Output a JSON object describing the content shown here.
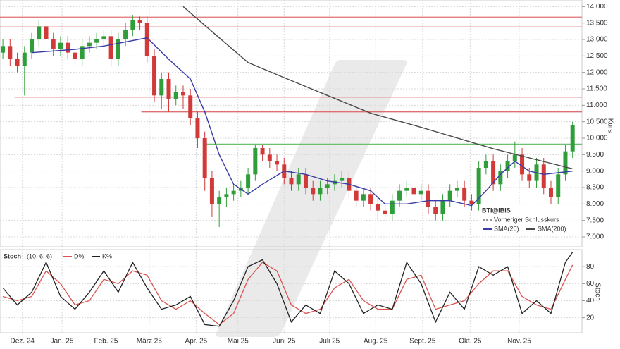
{
  "chart_data": [
    {
      "type": "candlestick",
      "title": "BTI@IBIS",
      "y_label": "Kurs",
      "previous_close_label": "Vorheriger Schlusskurs",
      "xlim": [
        -0.4,
        80.3
      ],
      "xticks": [
        {
          "value": 2.7,
          "label": "Dez. 24"
        },
        {
          "value": 8.2,
          "label": "Jan. 25"
        },
        {
          "value": 14.3,
          "label": "Feb. 25"
        },
        {
          "value": 20.3,
          "label": "März 25"
        },
        {
          "value": 26.8,
          "label": "Apr. 25"
        },
        {
          "value": 32.6,
          "label": "Mai 25"
        },
        {
          "value": 39,
          "label": "Juni 25"
        },
        {
          "value": 45.3,
          "label": "Juli 25"
        },
        {
          "value": 51.7,
          "label": "Aug. 25"
        },
        {
          "value": 58.2,
          "label": "Sept. 25"
        },
        {
          "value": 64.8,
          "label": "Okt. 25"
        },
        {
          "value": 71.6,
          "label": "Nov. 25"
        }
      ],
      "ylim": [
        6.7,
        14.2
      ],
      "yticks": [
        {
          "value": 7,
          "label": "7.000"
        },
        {
          "value": 7.5,
          "label": "7.500"
        },
        {
          "value": 8,
          "label": "8.000"
        },
        {
          "value": 8.5,
          "label": "8.500"
        },
        {
          "value": 9,
          "label": "9.000"
        },
        {
          "value": 9.5,
          "label": "9.500"
        },
        {
          "value": 10,
          "label": "10.000"
        },
        {
          "value": 10.5,
          "label": "10.500"
        },
        {
          "value": 11,
          "label": "11.000"
        },
        {
          "value": 11.5,
          "label": "11.500"
        },
        {
          "value": 12,
          "label": "12.000"
        },
        {
          "value": 12.5,
          "label": "12.500"
        },
        {
          "value": 13,
          "label": "13.000"
        },
        {
          "value": 13.5,
          "label": "13.500"
        },
        {
          "value": 14,
          "label": "14.000"
        }
      ],
      "grid": true,
      "up_color": "#2f9e3a",
      "down_color": "#d23a3a",
      "open": [
        12.6,
        12.8,
        12.4,
        12.2,
        12.6,
        13.0,
        13.4,
        13.0,
        12.7,
        12.9,
        12.6,
        12.4,
        12.8,
        12.9,
        13.0,
        13.1,
        12.4,
        13.0,
        13.3,
        13.6,
        13.5,
        12.5,
        11.3,
        11.8,
        11.2,
        11.4,
        11.3,
        10.6,
        10.0,
        8.8,
        8.0,
        8.2,
        8.3,
        8.4,
        8.5,
        8.9,
        9.7,
        9.5,
        9.3,
        9.2,
        8.8,
        8.6,
        8.9,
        8.5,
        8.3,
        8.5,
        8.6,
        8.7,
        8.8,
        8.4,
        8.1,
        8.3,
        8.0,
        7.8,
        7.7,
        8.1,
        8.4,
        8.5,
        8.3,
        8.4,
        7.9,
        7.7,
        8.1,
        8.4,
        8.5,
        8.1,
        8.0,
        9.1,
        9.3,
        8.6,
        9.0,
        9.3,
        9.5,
        8.9,
        8.7,
        9.2,
        8.5,
        8.2,
        8.9,
        9.6
      ],
      "high": [
        13.0,
        13.0,
        12.6,
        12.8,
        13.2,
        13.6,
        13.6,
        13.2,
        13.1,
        13.1,
        12.8,
        13.0,
        13.1,
        13.2,
        13.3,
        13.3,
        13.2,
        13.5,
        13.75,
        13.7,
        13.7,
        12.7,
        12.0,
        12.0,
        11.6,
        11.6,
        11.5,
        10.8,
        10.2,
        9.0,
        8.4,
        8.5,
        8.6,
        8.7,
        9.1,
        9.8,
        9.8,
        9.7,
        9.5,
        9.4,
        9.0,
        9.1,
        9.1,
        8.7,
        8.7,
        8.8,
        8.9,
        9.0,
        9.0,
        8.6,
        8.5,
        8.5,
        8.2,
        8.0,
        8.3,
        8.6,
        8.7,
        8.7,
        8.6,
        8.6,
        8.1,
        8.3,
        8.6,
        8.7,
        8.7,
        8.3,
        9.3,
        9.5,
        9.5,
        9.2,
        9.5,
        9.9,
        9.7,
        9.1,
        9.4,
        9.4,
        8.7,
        9.1,
        9.8,
        10.5
      ],
      "low": [
        12.4,
        12.2,
        12.0,
        11.3,
        12.4,
        12.8,
        12.8,
        12.5,
        12.5,
        12.4,
        12.2,
        12.2,
        12.6,
        12.7,
        12.8,
        12.2,
        12.2,
        12.8,
        13.1,
        13.3,
        12.3,
        11.1,
        10.9,
        10.8,
        11.0,
        10.9,
        10.4,
        9.7,
        8.4,
        7.6,
        7.3,
        7.9,
        8.1,
        8.2,
        8.3,
        8.7,
        9.3,
        9.1,
        9.0,
        8.6,
        8.4,
        8.4,
        8.3,
        8.1,
        8.1,
        8.3,
        8.4,
        8.5,
        8.2,
        7.9,
        7.9,
        7.8,
        7.5,
        7.5,
        7.5,
        7.9,
        8.2,
        8.1,
        8.1,
        7.7,
        7.5,
        7.5,
        7.9,
        8.2,
        7.9,
        7.8,
        7.8,
        8.9,
        8.4,
        8.4,
        8.8,
        9.1,
        8.7,
        8.5,
        8.5,
        8.3,
        8.0,
        8.0,
        8.7,
        9.4
      ],
      "close": [
        12.8,
        12.4,
        12.2,
        12.6,
        13.0,
        13.4,
        13.0,
        12.7,
        12.9,
        12.6,
        12.4,
        12.8,
        12.9,
        13.0,
        13.1,
        12.4,
        13.0,
        13.3,
        13.6,
        13.5,
        12.5,
        11.3,
        11.8,
        11.2,
        11.4,
        11.3,
        10.6,
        10.0,
        8.8,
        8.0,
        8.2,
        8.3,
        8.4,
        8.5,
        8.9,
        9.7,
        9.5,
        9.3,
        9.2,
        8.8,
        8.6,
        8.9,
        8.5,
        8.3,
        8.5,
        8.6,
        8.7,
        8.8,
        8.4,
        8.1,
        8.3,
        8.0,
        7.8,
        7.7,
        8.1,
        8.4,
        8.5,
        8.3,
        8.4,
        7.9,
        7.7,
        8.1,
        8.4,
        8.5,
        8.1,
        8.0,
        9.1,
        9.3,
        8.6,
        9.0,
        9.3,
        9.5,
        8.9,
        8.7,
        9.2,
        8.5,
        8.2,
        8.9,
        9.6,
        10.4
      ],
      "lines": [
        {
          "name": "SMA(20)",
          "color": "#3b3ba6",
          "x": [
            4,
            10,
            14,
            20,
            23,
            26,
            28,
            30,
            32,
            34,
            36,
            39,
            42,
            45,
            48,
            51,
            53,
            56,
            59,
            62,
            65,
            67,
            69,
            71,
            73,
            75,
            77,
            79
          ],
          "values": [
            12.6,
            12.7,
            12.8,
            13.05,
            12.4,
            11.8,
            10.8,
            9.5,
            8.6,
            8.3,
            8.6,
            9.0,
            8.9,
            8.7,
            8.6,
            8.4,
            8.0,
            8.0,
            8.1,
            8.1,
            7.95,
            8.4,
            8.9,
            9.3,
            9.0,
            8.9,
            8.95,
            9.0
          ]
        },
        {
          "name": "SMA(200)",
          "color": "#4a4a4a",
          "x": [
            25,
            29,
            34,
            39,
            45,
            51,
            58,
            68,
            75,
            79
          ],
          "values": [
            14.0,
            13.24,
            12.3,
            11.84,
            11.3,
            10.76,
            10.33,
            9.68,
            9.29,
            9.07
          ]
        }
      ],
      "levels": [
        {
          "value": 13.68,
          "color": "#e07070",
          "start": -0.4
        },
        {
          "value": 13.38,
          "color": "#e07070",
          "start": -0.4
        },
        {
          "value": 11.25,
          "color": "#e07070",
          "start": 1.6
        },
        {
          "value": 10.8,
          "color": "#e07070",
          "start": 19.2
        },
        {
          "value": 9.82,
          "color": "#6cbf6c",
          "start": 27.9
        }
      ]
    },
    {
      "type": "line",
      "title": "Stoch",
      "subtitle": "(10, 6, 6)",
      "y_label": "Stoch",
      "xlim": [
        -0.4,
        80.3
      ],
      "ylim": [
        4,
        100
      ],
      "yticks": [
        20,
        40,
        60,
        80
      ],
      "grid": true,
      "series": [
        {
          "name": "D%",
          "color": "#d9534f",
          "x": [
            0,
            2,
            4,
            6,
            8,
            10,
            12,
            14,
            16,
            18,
            20,
            22,
            24,
            26,
            28,
            30,
            32,
            34,
            36,
            38,
            40,
            42,
            44,
            46,
            48,
            50,
            52,
            54,
            56,
            58,
            60,
            62,
            64,
            66,
            68,
            70,
            72,
            74,
            76,
            78,
            79
          ],
          "values": [
            45,
            40,
            45,
            75,
            60,
            35,
            40,
            65,
            60,
            75,
            70,
            40,
            30,
            40,
            25,
            12,
            25,
            65,
            85,
            75,
            35,
            25,
            30,
            55,
            65,
            40,
            30,
            30,
            65,
            70,
            30,
            35,
            40,
            60,
            75,
            75,
            45,
            35,
            30,
            65,
            82
          ]
        },
        {
          "name": "K%",
          "color": "#222222",
          "x": [
            0,
            2,
            4,
            6,
            8,
            10,
            12,
            14,
            16,
            18,
            20,
            22,
            24,
            26,
            28,
            30,
            32,
            34,
            36,
            38,
            40,
            42,
            44,
            46,
            48,
            50,
            52,
            54,
            56,
            58,
            60,
            62,
            64,
            66,
            68,
            70,
            72,
            74,
            76,
            78,
            79
          ],
          "values": [
            55,
            35,
            50,
            85,
            45,
            30,
            50,
            75,
            50,
            85,
            55,
            30,
            35,
            45,
            12,
            10,
            40,
            80,
            88,
            60,
            15,
            35,
            25,
            75,
            60,
            25,
            35,
            30,
            85,
            60,
            15,
            50,
            30,
            80,
            70,
            80,
            25,
            40,
            25,
            85,
            97
          ]
        }
      ]
    }
  ]
}
